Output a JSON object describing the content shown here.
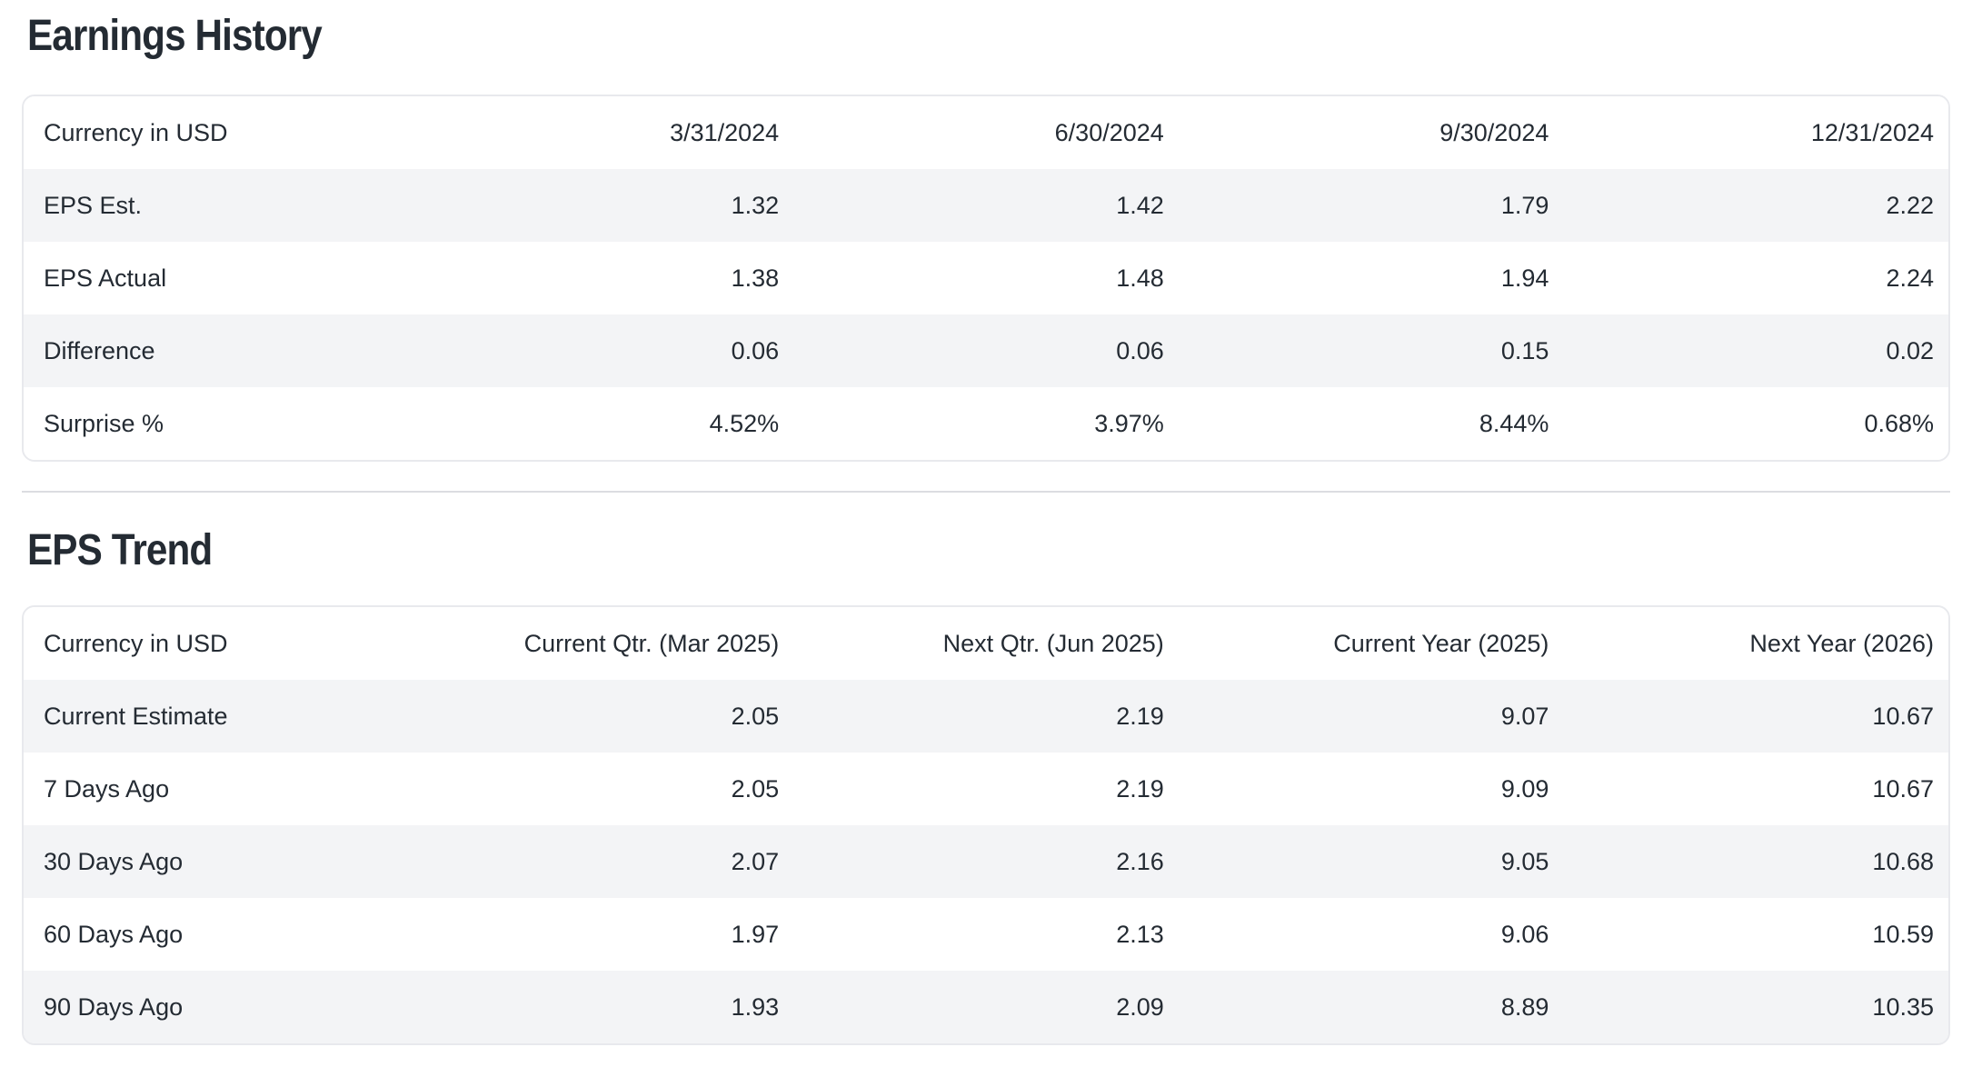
{
  "colors": {
    "text": "#242b33",
    "stripe": "#f3f4f6",
    "table_border": "#e8e9ed",
    "divider": "#dcdde1",
    "bg": "#ffffff"
  },
  "sections": {
    "earnings_history": {
      "title": "Earnings History",
      "columns": [
        "Currency in USD",
        "3/31/2024",
        "6/30/2024",
        "9/30/2024",
        "12/31/2024"
      ],
      "rows": [
        {
          "label": "EPS Est.",
          "values": [
            "1.32",
            "1.42",
            "1.79",
            "2.22"
          ]
        },
        {
          "label": "EPS Actual",
          "values": [
            "1.38",
            "1.48",
            "1.94",
            "2.24"
          ]
        },
        {
          "label": "Difference",
          "values": [
            "0.06",
            "0.06",
            "0.15",
            "0.02"
          ]
        },
        {
          "label": "Surprise %",
          "values": [
            "4.52%",
            "3.97%",
            "8.44%",
            "0.68%"
          ]
        }
      ]
    },
    "eps_trend": {
      "title": "EPS Trend",
      "columns": [
        "Currency in USD",
        "Current Qtr. (Mar 2025)",
        "Next Qtr. (Jun 2025)",
        "Current Year (2025)",
        "Next Year (2026)"
      ],
      "rows": [
        {
          "label": "Current Estimate",
          "values": [
            "2.05",
            "2.19",
            "9.07",
            "10.67"
          ]
        },
        {
          "label": "7 Days Ago",
          "values": [
            "2.05",
            "2.19",
            "9.09",
            "10.67"
          ]
        },
        {
          "label": "30 Days Ago",
          "values": [
            "2.07",
            "2.16",
            "9.05",
            "10.68"
          ]
        },
        {
          "label": "60 Days Ago",
          "values": [
            "1.97",
            "2.13",
            "9.06",
            "10.59"
          ]
        },
        {
          "label": "90 Days Ago",
          "values": [
            "1.93",
            "2.09",
            "8.89",
            "10.35"
          ]
        }
      ]
    }
  }
}
